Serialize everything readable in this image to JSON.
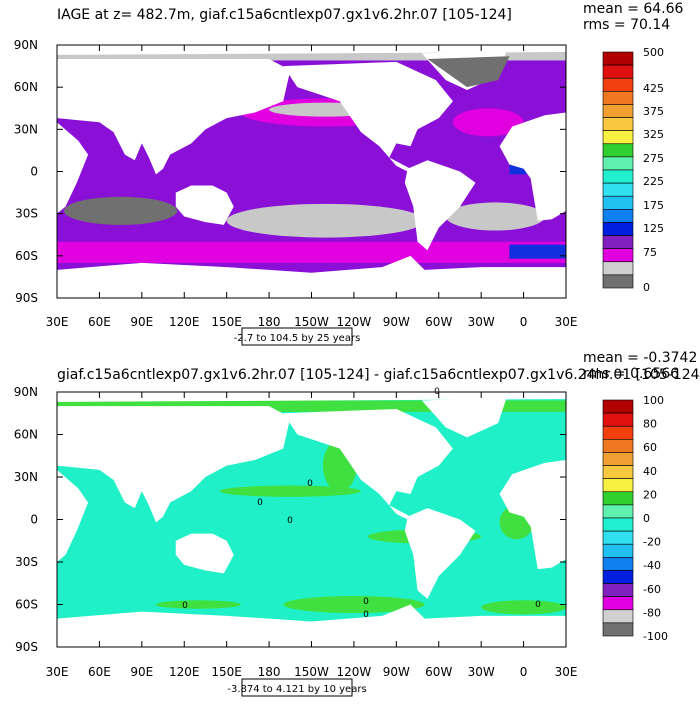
{
  "panels": [
    {
      "title": "IAGE at z= 482.7m, giaf.c15a6cntlexp07.gx1v6.2hr.07 [105-124]",
      "mean": "mean = 64.66",
      "rms": "rms = 70.14",
      "lat_labels": [
        "90N",
        "60N",
        "30N",
        "0",
        "30S",
        "60S",
        "90S"
      ],
      "lon_labels": [
        "30E",
        "60E",
        "90E",
        "120E",
        "150E",
        "180",
        "150W",
        "120W",
        "90W",
        "60W",
        "30W",
        "0",
        "30E"
      ],
      "range_note": "-2.7 to 104.5 by 25 years",
      "colorbar_labels": [
        "500",
        "425",
        "375",
        "325",
        "275",
        "225",
        "175",
        "125",
        "75",
        "0"
      ]
    },
    {
      "title": "giaf.c15a6cntlexp07.gx1v6.2hr.07 [105-124] - giaf.c15a6cntlexp07.gx1v6.24hr.01 [105-124]",
      "mean": "mean = -0.3742",
      "rms": "rms = 0.6566",
      "lat_labels": [
        "90N",
        "60N",
        "30N",
        "0",
        "30S",
        "60S",
        "90S"
      ],
      "lon_labels": [
        "30E",
        "60E",
        "90E",
        "120E",
        "150E",
        "180",
        "150W",
        "120W",
        "90W",
        "60W",
        "30W",
        "0",
        "30E"
      ],
      "range_note": "-3.874 to 4.121 by 10 years",
      "colorbar_labels": [
        "100",
        "80",
        "60",
        "40",
        "20",
        "0",
        "-20",
        "-40",
        "-60",
        "-80",
        "-100"
      ],
      "contour_labels": [
        "0",
        "0",
        "0",
        "0",
        "0",
        "0",
        "0",
        "0"
      ]
    }
  ]
}
